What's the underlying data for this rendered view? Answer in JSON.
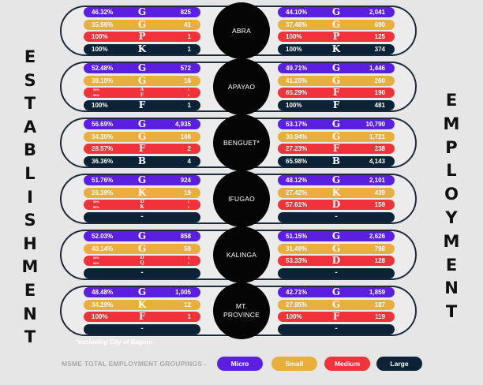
{
  "colors": {
    "micro": "#5b1fe0",
    "small": "#e9ae3c",
    "medium": "#f0323a",
    "large": "#0c2236"
  },
  "titles": {
    "left": "ESTABLISHMENT",
    "right": "EMPLOYMENT"
  },
  "footnote": "*excluding City of Baguio",
  "legend": {
    "title": "MSME TOTAL EMPLOYMENT GROUPINGS -",
    "items": [
      {
        "label": "Micro",
        "color": "micro"
      },
      {
        "label": "Small",
        "color": "small"
      },
      {
        "label": "Medium",
        "color": "medium"
      },
      {
        "label": "Large",
        "color": "large"
      }
    ]
  },
  "chart_data": {
    "type": "table",
    "columns": [
      "Establishment",
      "Employment"
    ],
    "rows": [
      {
        "province": "ABRA",
        "establishment": [
          {
            "pct": "46.32%",
            "letter": "G",
            "value": "825"
          },
          {
            "pct": "35.96%",
            "letter": "G",
            "value": "41"
          },
          {
            "pct": "100%",
            "letter": "P",
            "value": "1"
          },
          {
            "pct": "100%",
            "letter": "K",
            "value": "1"
          }
        ],
        "employment": [
          {
            "pct": "44.10%",
            "letter": "G",
            "value": "2,041"
          },
          {
            "pct": "37.46%",
            "letter": "G",
            "value": "690"
          },
          {
            "pct": "100%",
            "letter": "P",
            "value": "125"
          },
          {
            "pct": "100%",
            "letter": "K",
            "value": "374"
          }
        ]
      },
      {
        "province": "APAYAO",
        "establishment": [
          {
            "pct": "52.48%",
            "letter": "G",
            "value": "572"
          },
          {
            "pct": "38.10%",
            "letter": "G",
            "value": "16"
          },
          {
            "split": true,
            "pcts": [
              "50%",
              "50%"
            ],
            "letters": [
              "A",
              "F"
            ],
            "values": [
              "1",
              "1"
            ]
          },
          {
            "pct": "100%",
            "letter": "F",
            "value": "1"
          }
        ],
        "employment": [
          {
            "pct": "49.71%",
            "letter": "G",
            "value": "1,446"
          },
          {
            "pct": "41.20%",
            "letter": "G",
            "value": "260"
          },
          {
            "pct": "65.29%",
            "letter": "F",
            "value": "190"
          },
          {
            "pct": "100%",
            "letter": "F",
            "value": "481"
          }
        ]
      },
      {
        "province": "BENGUET*",
        "establishment": [
          {
            "pct": "56.69%",
            "letter": "G",
            "value": "4,935"
          },
          {
            "pct": "34.30%",
            "letter": "G",
            "value": "106"
          },
          {
            "pct": "28.57%",
            "letter": "F",
            "value": "2"
          },
          {
            "pct": "36.36%",
            "letter": "B",
            "value": "4"
          }
        ],
        "employment": [
          {
            "pct": "53.17%",
            "letter": "G",
            "value": "10,790"
          },
          {
            "pct": "30.94%",
            "letter": "G",
            "value": "1,721"
          },
          {
            "pct": "27.23%",
            "letter": "F",
            "value": "238"
          },
          {
            "pct": "65.98%",
            "letter": "B",
            "value": "4,143"
          }
        ]
      },
      {
        "province": "IFUGAO",
        "establishment": [
          {
            "pct": "51.76%",
            "letter": "G",
            "value": "924"
          },
          {
            "pct": "26.39%",
            "letter": "K",
            "value": "19"
          },
          {
            "split": true,
            "pcts": [
              "50%",
              "50%"
            ],
            "letters": [
              "D",
              "K"
            ],
            "values": [
              "1",
              "1"
            ]
          },
          {
            "empty": true,
            "dash": "-"
          }
        ],
        "employment": [
          {
            "pct": "48.12%",
            "letter": "G",
            "value": "2,101"
          },
          {
            "pct": "27.42%",
            "letter": "K",
            "value": "439"
          },
          {
            "pct": "57.61%",
            "letter": "D",
            "value": "159"
          },
          {
            "empty": true,
            "dash": "-"
          }
        ]
      },
      {
        "province": "KALINGA",
        "establishment": [
          {
            "pct": "52.03%",
            "letter": "G",
            "value": "858"
          },
          {
            "pct": "40.14%",
            "letter": "G",
            "value": "59"
          },
          {
            "split": true,
            "pcts": [
              "50%",
              "50%"
            ],
            "letters": [
              "D",
              "Q"
            ],
            "values": [
              "1",
              "1"
            ]
          },
          {
            "empty": true,
            "dash": "-"
          }
        ],
        "employment": [
          {
            "pct": "51.15%",
            "letter": "G",
            "value": "2,626"
          },
          {
            "pct": "31.49%",
            "letter": "G",
            "value": "798"
          },
          {
            "pct": "53.33%",
            "letter": "D",
            "value": "128"
          },
          {
            "empty": true,
            "dash": "-"
          }
        ]
      },
      {
        "province": "MT. PROVINCE",
        "establishment": [
          {
            "pct": "48.48%",
            "letter": "G",
            "value": "1,005"
          },
          {
            "pct": "34.29%",
            "letter": "K",
            "value": "12"
          },
          {
            "pct": "100%",
            "letter": "F",
            "value": "1"
          },
          {
            "empty": true,
            "dash": "-"
          }
        ],
        "employment": [
          {
            "pct": "42.71%",
            "letter": "G",
            "value": "1,859"
          },
          {
            "pct": "27.95%",
            "letter": "G",
            "value": "187"
          },
          {
            "pct": "100%",
            "letter": "F",
            "value": "119"
          },
          {
            "empty": true,
            "dash": "-"
          }
        ]
      }
    ]
  }
}
